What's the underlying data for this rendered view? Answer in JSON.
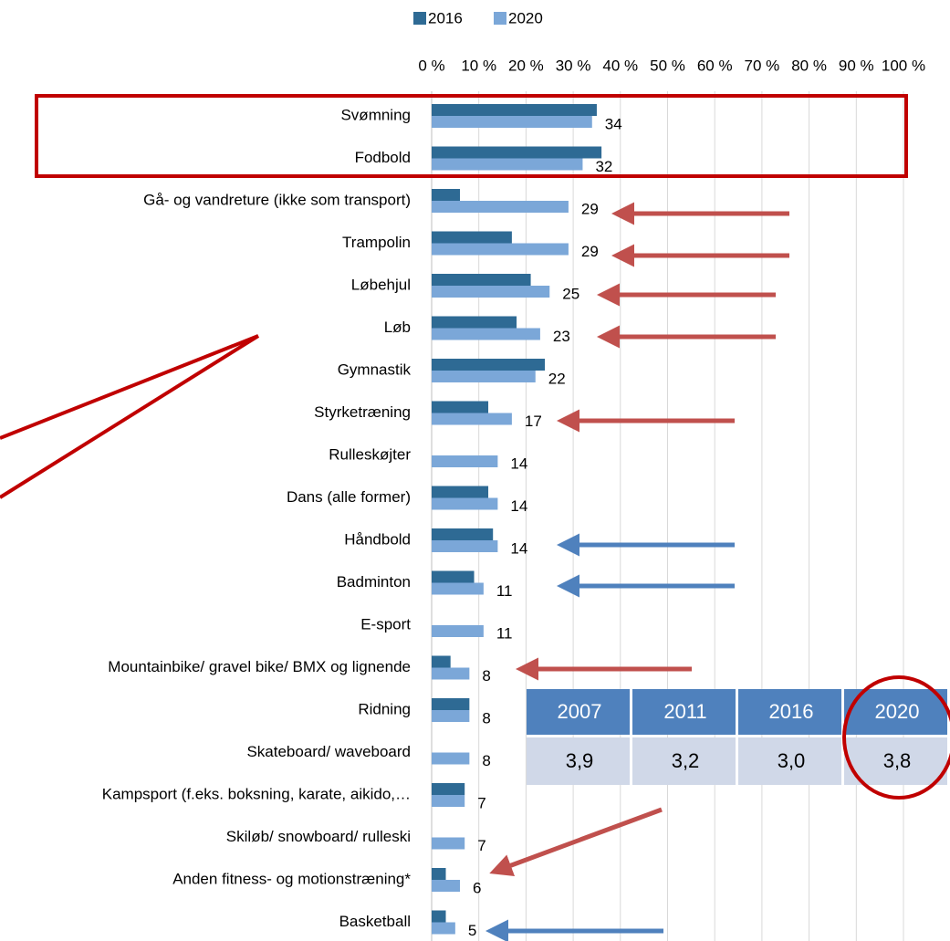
{
  "chart_data": {
    "type": "barh",
    "categories": [
      "Svømning",
      "Fodbold",
      "Gå- og vandreture (ikke som transport)",
      "Trampolin",
      "Løbehjul",
      "Løb",
      "Gymnastik",
      "Styrketræning",
      "Rulleskøjter",
      "Dans (alle former)",
      "Håndbold",
      "Badminton",
      "E-sport",
      "Mountainbike/ gravel bike/ BMX og lignende",
      "Ridning",
      "Skateboard/ waveboard",
      "Kampsport (f.eks. boksning, karate, aikido,…",
      "Skiløb/ snowboard/ rulleski",
      "Anden fitness- og motionstræning*",
      "Basketball"
    ],
    "series": [
      {
        "name": "2016",
        "color": "#2e6a94",
        "values": [
          35,
          36,
          6,
          17,
          21,
          18,
          24,
          12,
          null,
          12,
          13,
          9,
          null,
          4,
          8,
          null,
          7,
          null,
          3,
          3
        ]
      },
      {
        "name": "2020",
        "color": "#7ba7d8",
        "values": [
          34,
          32,
          29,
          29,
          25,
          23,
          22,
          17,
          14,
          14,
          14,
          11,
          11,
          8,
          8,
          8,
          7,
          7,
          6,
          5
        ]
      }
    ],
    "data_labels_series": 1,
    "xlim": [
      0,
      100
    ],
    "xticks": [
      {
        "value": 0,
        "label": "0 %"
      },
      {
        "value": 10,
        "label": "10 %"
      },
      {
        "value": 20,
        "label": "20 %"
      },
      {
        "value": 30,
        "label": "30 %"
      },
      {
        "value": 40,
        "label": "40 %"
      },
      {
        "value": 50,
        "label": "50 %"
      },
      {
        "value": 60,
        "label": "60 %"
      },
      {
        "value": 70,
        "label": "70 %"
      },
      {
        "value": 80,
        "label": "80 %"
      },
      {
        "value": 90,
        "label": "90 %"
      },
      {
        "value": 100,
        "label": "100 %"
      }
    ],
    "grid": true,
    "legend": "top"
  },
  "table": {
    "header": [
      "2007",
      "2011",
      "2016",
      "2020"
    ],
    "rows": [
      [
        "3,9",
        "3,2",
        "3,0",
        "3,8"
      ]
    ]
  }
}
